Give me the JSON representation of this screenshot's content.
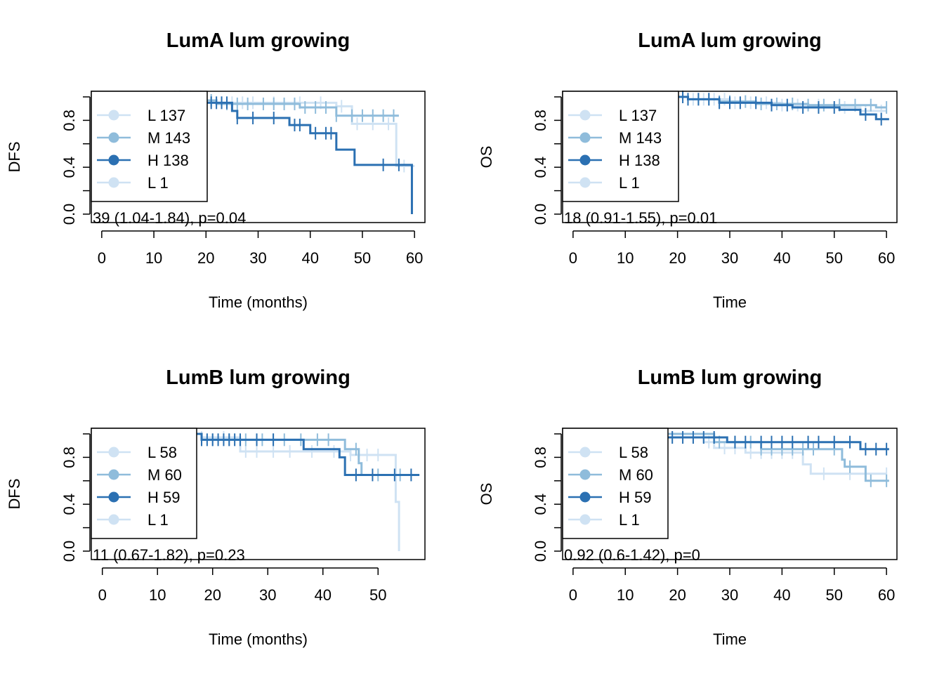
{
  "colors": {
    "L": "#cfe2f3",
    "M": "#8fbcdb",
    "H": "#2b70b2"
  },
  "chart_data": [
    {
      "type": "line",
      "title": "LumA lum growing",
      "xlabel": "Time (months)",
      "ylabel": "DFS",
      "xlim": [
        -2,
        62
      ],
      "ylim": [
        0,
        1
      ],
      "xticks": [
        "0",
        "10",
        "20",
        "30",
        "40",
        "50",
        "60"
      ],
      "yticks": [
        "0.0",
        "0.4",
        "0.8"
      ],
      "legend": [
        "L 137",
        "M 143",
        "H 138",
        "L 1"
      ],
      "stat_text": "39 (1.04-1.84), p=0.04",
      "series": [
        {
          "group": "L",
          "steps": [
            [
              0,
              1.0
            ],
            [
              18,
              0.97
            ],
            [
              22,
              0.95
            ],
            [
              45,
              0.92
            ],
            [
              48,
              0.77
            ],
            [
              56,
              0.77
            ],
            [
              56.5,
              0.41
            ],
            [
              60,
              0.41
            ]
          ],
          "censors": [
            10,
            14,
            17,
            20,
            21,
            23,
            25,
            27,
            29,
            33,
            38,
            42,
            46,
            49,
            52,
            55,
            58
          ]
        },
        {
          "group": "M",
          "steps": [
            [
              0,
              1.0
            ],
            [
              20,
              0.97
            ],
            [
              22,
              0.94
            ],
            [
              38,
              0.91
            ],
            [
              45,
              0.84
            ],
            [
              57,
              0.84
            ]
          ],
          "censors": [
            15,
            19,
            21,
            24,
            26,
            28,
            31,
            33,
            35,
            37,
            39,
            41,
            43,
            45,
            48,
            50,
            52,
            54,
            56
          ]
        },
        {
          "group": "H",
          "steps": [
            [
              0,
              1.0
            ],
            [
              20,
              0.95
            ],
            [
              25,
              0.88
            ],
            [
              26,
              0.82
            ],
            [
              36,
              0.76
            ],
            [
              40,
              0.69
            ],
            [
              45,
              0.55
            ],
            [
              48.5,
              0.42
            ],
            [
              59.5,
              0.0
            ]
          ],
          "censors": [
            20,
            21,
            22,
            23,
            24,
            26,
            29,
            33,
            37,
            38,
            41,
            43,
            44,
            54,
            57
          ]
        }
      ]
    },
    {
      "type": "line",
      "title": "LumA lum growing",
      "xlabel": "Time",
      "ylabel": "OS",
      "xlim": [
        -2,
        62
      ],
      "ylim": [
        0,
        1
      ],
      "xticks": [
        "0",
        "10",
        "20",
        "30",
        "40",
        "50",
        "60"
      ],
      "yticks": [
        "0.0",
        "0.4",
        "0.8"
      ],
      "legend": [
        "L 137",
        "M 143",
        "H 138",
        "L 1"
      ],
      "stat_text": "18 (0.91-1.55), p=0.01",
      "series": [
        {
          "group": "L",
          "steps": [
            [
              0,
              1.0
            ],
            [
              22,
              0.98
            ],
            [
              30,
              0.95
            ],
            [
              40,
              0.93
            ],
            [
              50,
              0.91
            ],
            [
              55,
              0.88
            ],
            [
              60,
              0.88
            ]
          ],
          "censors": [
            21,
            23,
            25,
            27,
            29,
            31,
            34,
            37,
            40,
            43,
            47,
            52,
            56,
            59
          ]
        },
        {
          "group": "M",
          "steps": [
            [
              0,
              1.0
            ],
            [
              22,
              0.98
            ],
            [
              28,
              0.96
            ],
            [
              35,
              0.94
            ],
            [
              45,
              0.93
            ],
            [
              58,
              0.91
            ],
            [
              60,
              0.91
            ]
          ],
          "censors": [
            22,
            24,
            26,
            28,
            30,
            33,
            36,
            39,
            42,
            45,
            48,
            51,
            54,
            57,
            60
          ]
        },
        {
          "group": "H",
          "steps": [
            [
              0,
              1.0
            ],
            [
              22,
              0.98
            ],
            [
              28,
              0.95
            ],
            [
              38,
              0.93
            ],
            [
              42,
              0.91
            ],
            [
              51,
              0.89
            ],
            [
              55,
              0.85
            ],
            [
              58,
              0.81
            ],
            [
              60.5,
              0.81
            ]
          ],
          "censors": [
            21,
            22,
            24,
            26,
            28,
            30,
            32,
            35,
            38,
            41,
            44,
            47,
            50,
            56,
            59
          ]
        }
      ]
    },
    {
      "type": "line",
      "title": "LumB lum growing",
      "xlabel": "Time (months)",
      "ylabel": "DFS",
      "xlim": [
        -2,
        58.5
      ],
      "ylim": [
        0,
        1
      ],
      "xticks": [
        "0",
        "10",
        "20",
        "30",
        "40",
        "50"
      ],
      "yticks": [
        "0.0",
        "0.4",
        "0.8"
      ],
      "legend": [
        "L 58",
        "M 60",
        "H 59",
        "L 1"
      ],
      "stat_text": "11 (0.67-1.82), p=0.23",
      "series": [
        {
          "group": "L",
          "steps": [
            [
              0,
              1.0
            ],
            [
              18,
              0.97
            ],
            [
              25,
              0.85
            ],
            [
              43,
              0.85
            ],
            [
              45,
              0.82
            ],
            [
              53,
              0.82
            ],
            [
              53.2,
              0.42
            ],
            [
              53.8,
              0.0
            ]
          ],
          "censors": [
            18,
            22,
            26,
            28,
            31,
            34,
            38,
            42,
            45,
            48,
            50
          ]
        },
        {
          "group": "M",
          "steps": [
            [
              0,
              1.0
            ],
            [
              18,
              0.95
            ],
            [
              43,
              0.95
            ],
            [
              44,
              0.87
            ],
            [
              46.5,
              0.75
            ],
            [
              47,
              0.65
            ],
            [
              57,
              0.65
            ]
          ],
          "censors": [
            18,
            20,
            23,
            26,
            29,
            31,
            33,
            36,
            39,
            41,
            46,
            50,
            54
          ]
        },
        {
          "group": "H",
          "steps": [
            [
              0,
              1.0
            ],
            [
              18,
              0.95
            ],
            [
              36,
              0.95
            ],
            [
              36.5,
              0.87
            ],
            [
              43,
              0.8
            ],
            [
              44,
              0.65
            ],
            [
              57.5,
              0.65
            ]
          ],
          "censors": [
            18,
            19,
            20,
            21,
            22,
            23,
            24,
            25,
            28,
            31,
            46,
            49,
            53,
            56
          ]
        }
      ]
    },
    {
      "type": "line",
      "title": "LumB lum growing",
      "xlabel": "Time",
      "ylabel": "OS",
      "xlim": [
        -2,
        62
      ],
      "ylim": [
        0,
        1
      ],
      "xticks": [
        "0",
        "10",
        "20",
        "30",
        "40",
        "50",
        "60"
      ],
      "yticks": [
        "0.0",
        "0.4",
        "0.8"
      ],
      "legend": [
        "L 58",
        "M 60",
        "H 59",
        "L 1"
      ],
      "stat_text": "0.92 (0.6-1.42), p=0",
      "series": [
        {
          "group": "L",
          "steps": [
            [
              0,
              1.0
            ],
            [
              25,
              0.93
            ],
            [
              27,
              0.88
            ],
            [
              33,
              0.84
            ],
            [
              44,
              0.74
            ],
            [
              45.5,
              0.66
            ],
            [
              60,
              0.66
            ]
          ],
          "censors": [
            26,
            29,
            31,
            34,
            36,
            38,
            40,
            42,
            48,
            53,
            56,
            60
          ]
        },
        {
          "group": "M",
          "steps": [
            [
              0,
              1.0
            ],
            [
              27,
              0.93
            ],
            [
              36,
              0.87
            ],
            [
              51.5,
              0.78
            ],
            [
              52,
              0.72
            ],
            [
              56,
              0.6
            ],
            [
              60.5,
              0.6
            ]
          ],
          "censors": [
            28,
            31,
            34,
            36,
            38,
            40,
            42,
            44,
            46,
            50,
            53,
            57,
            60
          ]
        },
        {
          "group": "H",
          "steps": [
            [
              0,
              1.0
            ],
            [
              18,
              0.97
            ],
            [
              29.5,
              0.93
            ],
            [
              55,
              0.87
            ],
            [
              60.5,
              0.87
            ]
          ],
          "censors": [
            19,
            21,
            23,
            25,
            27,
            31,
            33,
            36,
            38,
            40,
            42,
            45,
            47,
            50,
            53,
            56,
            58,
            60
          ]
        }
      ]
    }
  ]
}
